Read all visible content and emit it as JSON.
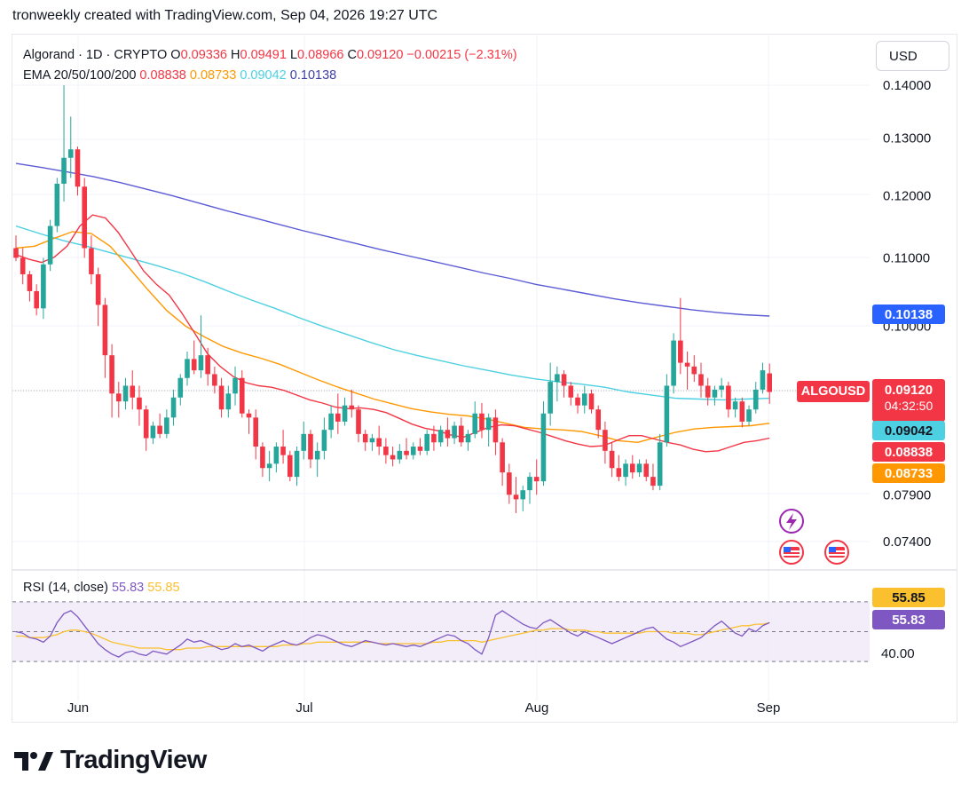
{
  "header": {
    "caption": "tronweekly created with TradingView.com, Sep 04, 2026 19:27 UTC"
  },
  "legend": {
    "symbol": "Algorand · 1D · CRYPTO",
    "open_label": "O",
    "open": "0.09336",
    "high_label": "H",
    "high": "0.09491",
    "low_label": "L",
    "low": "0.08966",
    "close_label": "C",
    "close": "0.09120",
    "change": "−0.00215 (−2.31%)",
    "ema_label": "EMA 20/50/100/200",
    "ema20": "0.08838",
    "ema50": "0.08733",
    "ema100": "0.09042",
    "ema200": "0.10138"
  },
  "currency": "USD",
  "symbol_tag": "ALGOUSD",
  "price_tags": {
    "ema200": "0.10138",
    "last": "0.09120",
    "countdown": "04:32:50",
    "ema100": "0.09042",
    "ema20": "0.08838",
    "ema50": "0.08733"
  },
  "rsi": {
    "label": "RSI (14, close)",
    "value": "55.83",
    "ma_value": "55.85",
    "tag_ma": "55.85",
    "tag_rsi": "55.83",
    "axis_label": "40.00",
    "upper_band": 70,
    "lower_band": 30
  },
  "branding": {
    "name": "TradingView"
  },
  "colors": {
    "up": "#26a69a",
    "down": "#f23645",
    "ema20": "#f23645",
    "ema50": "#ff9800",
    "ema100": "#4dd0e1",
    "ema200": "#5b5bd6",
    "rsi": "#7e57c2",
    "rsi_ma": "#fbc02d",
    "rsi_band": "#ede7f6",
    "tag_ema200": "#2962ff",
    "tag_last": "#f23645",
    "tag_ema100": "#4dd0e1",
    "tag_ema20": "#f23645",
    "tag_ema50": "#ff9800",
    "tag_rsi": "#7e57c2",
    "tag_rsi_ma": "#fbc02d"
  },
  "chart_data": {
    "type": "candlestick",
    "title": "Algorand · 1D · CRYPTO",
    "y_axis": {
      "scale": "log",
      "ticks": [
        "0.14000",
        "0.13000",
        "0.12000",
        "0.11000",
        "0.10000",
        "0.07900",
        "0.07400"
      ]
    },
    "x_axis": {
      "ticks": [
        "Jun",
        "Jul",
        "Aug",
        "Sep"
      ]
    },
    "ohlc": [
      [
        0.1115,
        0.1135,
        0.1095,
        0.11
      ],
      [
        0.11,
        0.1115,
        0.106,
        0.1075
      ],
      [
        0.1075,
        0.108,
        0.1035,
        0.105
      ],
      [
        0.105,
        0.106,
        0.1015,
        0.1025
      ],
      [
        0.1025,
        0.11,
        0.101,
        0.109
      ],
      [
        0.109,
        0.116,
        0.108,
        0.115
      ],
      [
        0.115,
        0.123,
        0.114,
        0.122
      ],
      [
        0.122,
        0.14,
        0.119,
        0.1265
      ],
      [
        0.1265,
        0.134,
        0.123,
        0.128
      ],
      [
        0.128,
        0.1285,
        0.12,
        0.1215
      ],
      [
        0.1215,
        0.123,
        0.11,
        0.1115
      ],
      [
        0.1115,
        0.1135,
        0.106,
        0.1075
      ],
      [
        0.1075,
        0.1085,
        0.1,
        0.103
      ],
      [
        0.103,
        0.104,
        0.093,
        0.096
      ],
      [
        0.096,
        0.0975,
        0.088,
        0.091
      ],
      [
        0.091,
        0.0925,
        0.088,
        0.09
      ],
      [
        0.09,
        0.093,
        0.089,
        0.092
      ],
      [
        0.092,
        0.094,
        0.089,
        0.0905
      ],
      [
        0.0905,
        0.092,
        0.087,
        0.089
      ],
      [
        0.089,
        0.0895,
        0.084,
        0.0855
      ],
      [
        0.0855,
        0.0875,
        0.0848,
        0.087
      ],
      [
        0.087,
        0.0885,
        0.0855,
        0.086
      ],
      [
        0.086,
        0.089,
        0.0855,
        0.088
      ],
      [
        0.088,
        0.0915,
        0.087,
        0.0905
      ],
      [
        0.0905,
        0.0935,
        0.0895,
        0.093
      ],
      [
        0.093,
        0.0965,
        0.092,
        0.0955
      ],
      [
        0.0955,
        0.098,
        0.0935,
        0.094
      ],
      [
        0.094,
        0.1015,
        0.093,
        0.096
      ],
      [
        0.096,
        0.097,
        0.092,
        0.0935
      ],
      [
        0.0935,
        0.0945,
        0.091,
        0.092
      ],
      [
        0.092,
        0.093,
        0.088,
        0.089
      ],
      [
        0.089,
        0.092,
        0.088,
        0.091
      ],
      [
        0.091,
        0.0945,
        0.0895,
        0.093
      ],
      [
        0.093,
        0.094,
        0.088,
        0.0885
      ],
      [
        0.0885,
        0.089,
        0.086,
        0.088
      ],
      [
        0.088,
        0.089,
        0.083,
        0.0845
      ],
      [
        0.0845,
        0.085,
        0.081,
        0.082
      ],
      [
        0.082,
        0.084,
        0.0805,
        0.0825
      ],
      [
        0.0825,
        0.085,
        0.0815,
        0.0845
      ],
      [
        0.0845,
        0.0865,
        0.0825,
        0.0835
      ],
      [
        0.0835,
        0.084,
        0.0805,
        0.081
      ],
      [
        0.081,
        0.0845,
        0.08,
        0.084
      ],
      [
        0.084,
        0.0875,
        0.083,
        0.086
      ],
      [
        0.086,
        0.0865,
        0.082,
        0.083
      ],
      [
        0.083,
        0.085,
        0.081,
        0.084
      ],
      [
        0.084,
        0.088,
        0.083,
        0.0865
      ],
      [
        0.0865,
        0.0895,
        0.0855,
        0.0885
      ],
      [
        0.0885,
        0.091,
        0.086,
        0.0875
      ],
      [
        0.0875,
        0.0905,
        0.087,
        0.0895
      ],
      [
        0.0895,
        0.0915,
        0.088,
        0.089
      ],
      [
        0.089,
        0.0895,
        0.085,
        0.086
      ],
      [
        0.086,
        0.0865,
        0.084,
        0.085
      ],
      [
        0.085,
        0.086,
        0.084,
        0.0855
      ],
      [
        0.0855,
        0.087,
        0.0835,
        0.0845
      ],
      [
        0.0845,
        0.0855,
        0.0825,
        0.0835
      ],
      [
        0.0835,
        0.0845,
        0.0822,
        0.083
      ],
      [
        0.083,
        0.0848,
        0.0825,
        0.084
      ],
      [
        0.084,
        0.0855,
        0.083,
        0.0835
      ],
      [
        0.0835,
        0.085,
        0.083,
        0.0845
      ],
      [
        0.0845,
        0.0855,
        0.0835,
        0.084
      ],
      [
        0.084,
        0.0865,
        0.0835,
        0.086
      ],
      [
        0.086,
        0.087,
        0.084,
        0.085
      ],
      [
        0.085,
        0.087,
        0.0845,
        0.0865
      ],
      [
        0.0865,
        0.088,
        0.0845,
        0.0855
      ],
      [
        0.0855,
        0.0875,
        0.0848,
        0.087
      ],
      [
        0.087,
        0.088,
        0.0845,
        0.085
      ],
      [
        0.085,
        0.0865,
        0.084,
        0.086
      ],
      [
        0.086,
        0.09,
        0.0855,
        0.0885
      ],
      [
        0.0885,
        0.0898,
        0.0855,
        0.0865
      ],
      [
        0.0865,
        0.0885,
        0.0845,
        0.088
      ],
      [
        0.088,
        0.089,
        0.0835,
        0.085
      ],
      [
        0.085,
        0.0855,
        0.08,
        0.0815
      ],
      [
        0.0815,
        0.0825,
        0.078,
        0.079
      ],
      [
        0.079,
        0.081,
        0.077,
        0.0785
      ],
      [
        0.0785,
        0.08,
        0.0772,
        0.0795
      ],
      [
        0.0795,
        0.0815,
        0.078,
        0.081
      ],
      [
        0.081,
        0.083,
        0.079,
        0.0805
      ],
      [
        0.0805,
        0.09,
        0.08,
        0.0885
      ],
      [
        0.0885,
        0.095,
        0.087,
        0.0925
      ],
      [
        0.0925,
        0.0945,
        0.09,
        0.0935
      ],
      [
        0.0935,
        0.094,
        0.0905,
        0.092
      ],
      [
        0.092,
        0.0925,
        0.0895,
        0.0905
      ],
      [
        0.0905,
        0.091,
        0.0885,
        0.0895
      ],
      [
        0.0895,
        0.092,
        0.0885,
        0.091
      ],
      [
        0.091,
        0.0915,
        0.0885,
        0.089
      ],
      [
        0.089,
        0.0895,
        0.0855,
        0.0865
      ],
      [
        0.0865,
        0.0875,
        0.0825,
        0.084
      ],
      [
        0.084,
        0.085,
        0.081,
        0.082
      ],
      [
        0.082,
        0.0835,
        0.0805,
        0.081
      ],
      [
        0.081,
        0.083,
        0.08,
        0.0825
      ],
      [
        0.0825,
        0.0835,
        0.0808,
        0.0815
      ],
      [
        0.0815,
        0.083,
        0.081,
        0.0825
      ],
      [
        0.0825,
        0.083,
        0.0805,
        0.081
      ],
      [
        0.081,
        0.0825,
        0.0795,
        0.08
      ],
      [
        0.08,
        0.086,
        0.0795,
        0.085
      ],
      [
        0.085,
        0.0935,
        0.0845,
        0.092
      ],
      [
        0.092,
        0.099,
        0.091,
        0.098
      ],
      [
        0.098,
        0.104,
        0.0935,
        0.095
      ],
      [
        0.095,
        0.0965,
        0.0915,
        0.0945
      ],
      [
        0.0945,
        0.096,
        0.0925,
        0.0935
      ],
      [
        0.0935,
        0.095,
        0.0905,
        0.092
      ],
      [
        0.092,
        0.093,
        0.0895,
        0.0905
      ],
      [
        0.0905,
        0.092,
        0.0895,
        0.0915
      ],
      [
        0.0915,
        0.093,
        0.0905,
        0.092
      ],
      [
        0.092,
        0.0925,
        0.088,
        0.089
      ],
      [
        0.089,
        0.0905,
        0.088,
        0.09
      ],
      [
        0.09,
        0.0905,
        0.0868,
        0.0875
      ],
      [
        0.0875,
        0.0895,
        0.087,
        0.089
      ],
      [
        0.089,
        0.0925,
        0.0885,
        0.0915
      ],
      [
        0.0915,
        0.095,
        0.091,
        0.094
      ],
      [
        0.0936,
        0.0949,
        0.0897,
        0.0912
      ]
    ],
    "ema20": [
      0.1105,
      0.1098,
      0.1093,
      0.1101,
      0.1118,
      0.115,
      0.1168,
      0.1163,
      0.114,
      0.111,
      0.108,
      0.106,
      0.1044,
      0.1018,
      0.099,
      0.0962,
      0.0945,
      0.0932,
      0.0924,
      0.092,
      0.0918,
      0.0914,
      0.0908,
      0.0902,
      0.0898,
      0.0893,
      0.0891,
      0.0892,
      0.089,
      0.0886,
      0.0879,
      0.0872,
      0.0867,
      0.0864,
      0.0859,
      0.0856,
      0.0862,
      0.0868,
      0.0871,
      0.087,
      0.0866,
      0.0862,
      0.0857,
      0.0852,
      0.0848,
      0.0845,
      0.0846,
      0.0852,
      0.0858,
      0.0858,
      0.0854,
      0.085,
      0.0847,
      0.0842,
      0.0839,
      0.084,
      0.0845,
      0.085,
      0.0852,
      0.0855
    ],
    "ema50": [
      0.1115,
      0.1118,
      0.113,
      0.1141,
      0.1138,
      0.1118,
      0.1085,
      0.1052,
      0.1022,
      0.1,
      0.0985,
      0.0972,
      0.0963,
      0.0956,
      0.0948,
      0.0938,
      0.0928,
      0.0919,
      0.0911,
      0.0903,
      0.0897,
      0.0891,
      0.0887,
      0.0884,
      0.0882,
      0.0878,
      0.0873,
      0.0868,
      0.0866,
      0.0865,
      0.0863,
      0.0858,
      0.0852,
      0.085,
      0.0856,
      0.0862,
      0.0866,
      0.0868,
      0.0869,
      0.087,
      0.0873
    ],
    "ema100": [
      0.115,
      0.1138,
      0.1127,
      0.1118,
      0.1108,
      0.1098,
      0.1088,
      0.1077,
      0.1064,
      0.105,
      0.1037,
      0.1025,
      0.1012,
      0.1,
      0.0989,
      0.0978,
      0.0968,
      0.096,
      0.0953,
      0.0946,
      0.094,
      0.0934,
      0.0929,
      0.0925,
      0.0922,
      0.0918,
      0.0912,
      0.0908,
      0.0904,
      0.0903,
      0.0902,
      0.0903,
      0.0904
    ],
    "ema200": [
      0.1255,
      0.1248,
      0.124,
      0.1232,
      0.1222,
      0.1211,
      0.12,
      0.1188,
      0.1176,
      0.1165,
      0.1154,
      0.1143,
      0.1133,
      0.1123,
      0.1113,
      0.1104,
      0.1095,
      0.1086,
      0.1077,
      0.1069,
      0.106,
      0.1053,
      0.1046,
      0.1039,
      0.1033,
      0.1028,
      0.1023,
      0.1019,
      0.1016,
      0.1014
    ],
    "rsi": [
      50,
      49,
      46,
      45,
      43,
      47,
      56,
      62,
      64,
      60,
      54,
      48,
      42,
      38,
      35,
      33,
      36,
      37,
      35,
      34,
      37,
      36,
      35,
      38,
      41,
      45,
      43,
      44,
      42,
      40,
      38,
      39,
      42,
      40,
      41,
      39,
      37,
      40,
      42,
      44,
      42,
      41,
      43,
      46,
      48,
      47,
      45,
      43,
      41,
      40,
      42,
      44,
      43,
      42,
      41,
      42,
      41,
      40,
      41,
      40,
      42,
      44,
      46,
      48,
      47,
      44,
      42,
      38,
      35,
      46,
      61,
      64,
      61,
      58,
      55,
      53,
      52,
      56,
      58,
      55,
      52,
      49,
      47,
      50,
      48,
      46,
      44,
      42,
      44,
      46,
      48,
      50,
      52,
      53,
      49,
      45,
      43,
      40,
      42,
      44,
      46,
      50,
      54,
      57,
      53,
      49,
      47,
      52,
      50,
      54,
      56
    ],
    "rsi_ma": [
      47,
      47,
      46,
      46,
      46,
      47,
      48,
      50,
      51,
      51,
      50,
      49,
      47,
      45,
      43,
      42,
      41,
      40,
      39,
      39,
      39,
      39,
      38,
      38,
      38,
      39,
      39,
      39,
      40,
      40,
      40,
      40,
      40,
      40,
      40,
      40,
      40,
      40,
      40,
      41,
      41,
      41,
      42,
      42,
      43,
      43,
      43,
      43,
      43,
      43,
      43,
      43,
      43,
      42,
      42,
      42,
      42,
      42,
      42,
      42,
      42,
      43,
      43,
      44,
      44,
      44,
      44,
      44,
      43,
      44,
      45,
      46,
      47,
      48,
      49,
      50,
      51,
      51,
      52,
      52,
      52,
      51,
      51,
      51,
      50,
      50,
      49,
      49,
      49,
      49,
      49,
      49,
      50,
      50,
      50,
      50,
      49,
      49,
      49,
      48,
      48,
      49,
      50,
      51,
      52,
      53,
      54,
      54,
      55,
      55,
      56
    ]
  }
}
